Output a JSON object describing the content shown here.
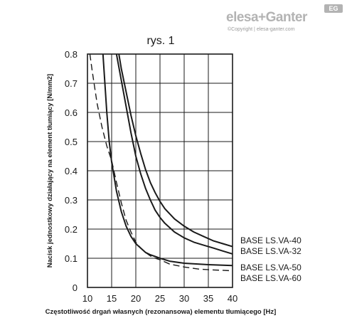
{
  "brand": {
    "name": "elesa+Ganter",
    "badge": "EG",
    "copyright": "©Copyright | elesa-ganter.com"
  },
  "chart_data": {
    "type": "line",
    "title": "rys. 1",
    "xlabel": "Częstotliwość drgań własnych (rezonansowa) elementu tłumiącego [Hz]",
    "ylabel": "Nacisk jednostkowy działający na element tłumiący [N/mm2]",
    "xlim": [
      10,
      40
    ],
    "ylim": [
      0,
      0.8
    ],
    "x_ticks": [
      "10",
      "15",
      "20",
      "25",
      "30",
      "35",
      "40"
    ],
    "y_ticks": [
      "0",
      "0.1",
      "0.2",
      "0.3",
      "0.4",
      "0.5",
      "0.6",
      "0.7",
      "0.8"
    ],
    "grid": true,
    "series": [
      {
        "name": "BASE LS.VA-40",
        "style": "solid",
        "color": "#1a1a1a",
        "points": [
          [
            16.5,
            0.8
          ],
          [
            17,
            0.75
          ],
          [
            18,
            0.67
          ],
          [
            19,
            0.59
          ],
          [
            20,
            0.52
          ],
          [
            21,
            0.46
          ],
          [
            22,
            0.405
          ],
          [
            23,
            0.36
          ],
          [
            24,
            0.325
          ],
          [
            25,
            0.295
          ],
          [
            26,
            0.27
          ],
          [
            28,
            0.235
          ],
          [
            30,
            0.21
          ],
          [
            32,
            0.19
          ],
          [
            34,
            0.175
          ],
          [
            36,
            0.16
          ],
          [
            38,
            0.15
          ],
          [
            40,
            0.14
          ]
        ]
      },
      {
        "name": "BASE LS.VA-32",
        "style": "solid",
        "color": "#1a1a1a",
        "points": [
          [
            16,
            0.8
          ],
          [
            17,
            0.71
          ],
          [
            18,
            0.62
          ],
          [
            19,
            0.53
          ],
          [
            20,
            0.45
          ],
          [
            21,
            0.39
          ],
          [
            22,
            0.34
          ],
          [
            23,
            0.3
          ],
          [
            24,
            0.265
          ],
          [
            25,
            0.24
          ],
          [
            26,
            0.22
          ],
          [
            28,
            0.19
          ],
          [
            30,
            0.17
          ],
          [
            32,
            0.155
          ],
          [
            34,
            0.145
          ],
          [
            36,
            0.135
          ],
          [
            38,
            0.125
          ],
          [
            40,
            0.115
          ]
        ]
      },
      {
        "name": "BASE LS.VA-50",
        "style": "solid",
        "color": "#1a1a1a",
        "points": [
          [
            13.2,
            0.8
          ],
          [
            13.6,
            0.7
          ],
          [
            14,
            0.6
          ],
          [
            14.5,
            0.5
          ],
          [
            15,
            0.43
          ],
          [
            16,
            0.33
          ],
          [
            17,
            0.26
          ],
          [
            18,
            0.21
          ],
          [
            19,
            0.175
          ],
          [
            20,
            0.15
          ],
          [
            21,
            0.135
          ],
          [
            22,
            0.12
          ],
          [
            23,
            0.112
          ],
          [
            24,
            0.106
          ],
          [
            25,
            0.1
          ],
          [
            27,
            0.09
          ],
          [
            30,
            0.083
          ],
          [
            35,
            0.078
          ],
          [
            40,
            0.075
          ]
        ]
      },
      {
        "name": "BASE LS.VA-60",
        "style": "dashed",
        "color": "#1a1a1a",
        "points": [
          [
            10.5,
            0.8
          ],
          [
            11,
            0.74
          ],
          [
            12,
            0.63
          ],
          [
            13,
            0.55
          ],
          [
            14,
            0.485
          ],
          [
            15,
            0.435
          ],
          [
            16,
            0.36
          ],
          [
            17,
            0.29
          ],
          [
            18,
            0.23
          ],
          [
            19,
            0.19
          ],
          [
            20,
            0.155
          ],
          [
            21,
            0.135
          ],
          [
            22,
            0.12
          ],
          [
            23,
            0.108
          ],
          [
            24,
            0.1
          ],
          [
            25,
            0.095
          ],
          [
            27,
            0.08
          ],
          [
            30,
            0.07
          ],
          [
            33,
            0.063
          ],
          [
            36,
            0.06
          ],
          [
            40,
            0.057
          ]
        ]
      }
    ],
    "legend_labels": [
      "BASE LS.VA-40",
      "BASE LS.VA-32",
      "BASE LS.VA-50",
      "BASE LS.VA-60"
    ]
  }
}
